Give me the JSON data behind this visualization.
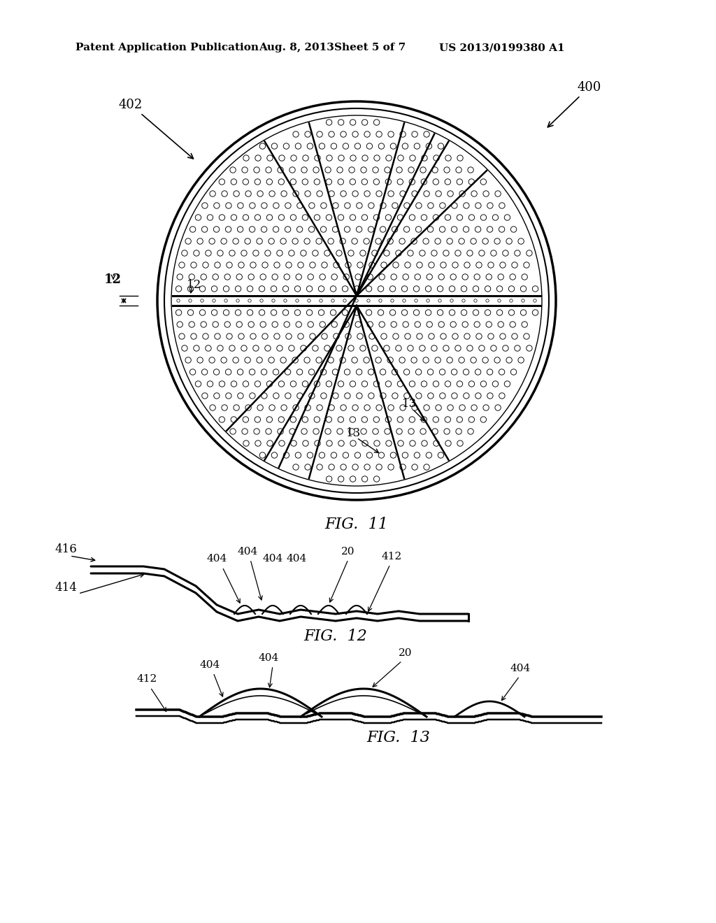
{
  "bg_color": "#ffffff",
  "header_text": "Patent Application Publication",
  "header_date": "Aug. 8, 2013",
  "header_sheet": "Sheet 5 of 7",
  "header_patent": "US 2013/0199380 A1",
  "fig11_label": "FIG.  11",
  "fig12_label": "FIG.  12",
  "fig13_label": "FIG.  13"
}
